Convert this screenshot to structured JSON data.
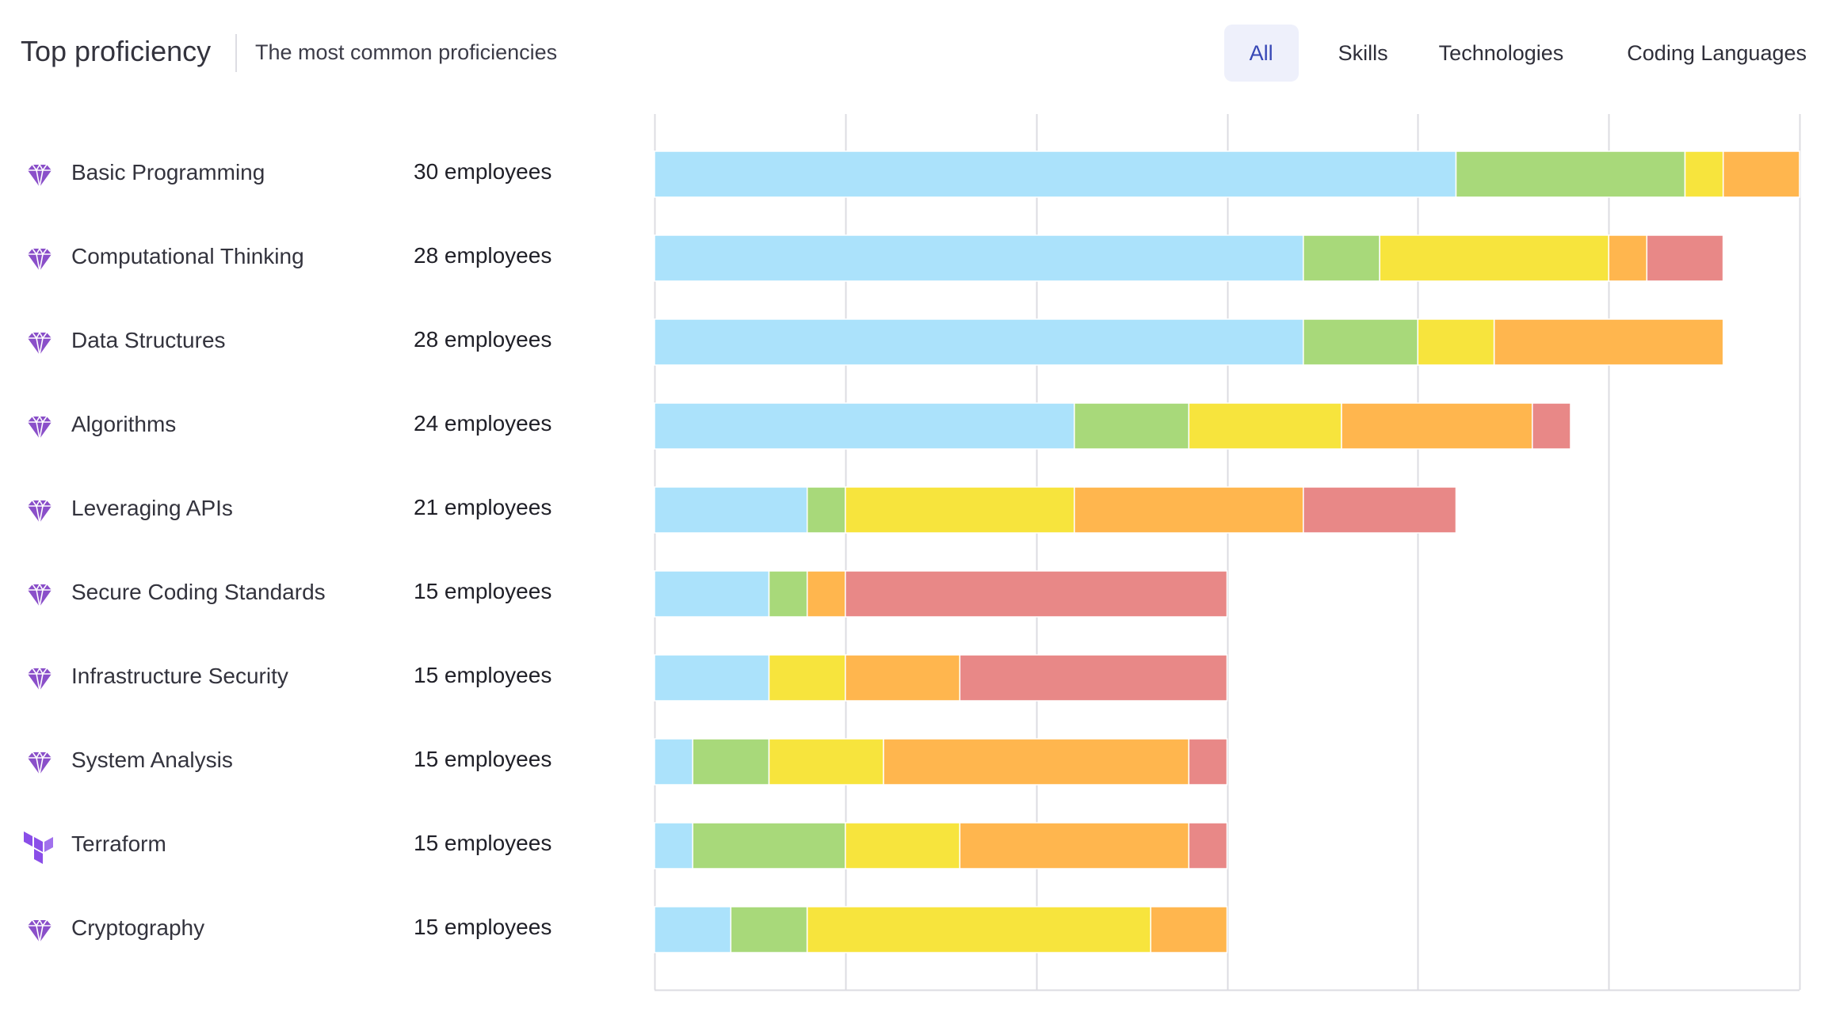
{
  "header": {
    "title": "Top proficiency",
    "subtitle": "The most common proficiencies"
  },
  "tabs": [
    {
      "label": "All",
      "active": true
    },
    {
      "label": "Skills",
      "active": false
    },
    {
      "label": "Technologies",
      "active": false
    },
    {
      "label": "Coding Languages",
      "active": false
    }
  ],
  "colors": {
    "level1": "#abe2fb",
    "level2": "#a8d97a",
    "level3": "#f7e43d",
    "level4": "#ffb64e",
    "level5": "#e88887",
    "grid": "#dcdce2",
    "skill_icon": "#8a4fc9",
    "tech_icon": "#8a4ee8"
  },
  "chart_data": {
    "type": "bar",
    "orientation": "horizontal",
    "stacked": true,
    "xlim": [
      0,
      30
    ],
    "grid": true,
    "categories": [
      "Basic Programming",
      "Computational Thinking",
      "Data Structures",
      "Algorithms",
      "Leveraging APIs",
      "Secure Coding Standards",
      "Infrastructure Security",
      "System Analysis",
      "Terraform",
      "Cryptography"
    ],
    "counts": [
      "30 employees",
      "28 employees",
      "28 employees",
      "24 employees",
      "21 employees",
      "15 employees",
      "15 employees",
      "15 employees",
      "15 employees",
      "15 employees"
    ],
    "icons": [
      "gem-icon",
      "gem-icon",
      "gem-icon",
      "gem-icon",
      "gem-icon",
      "gem-icon",
      "gem-icon",
      "gem-icon",
      "terraform-icon",
      "gem-icon"
    ],
    "series": [
      {
        "values": [
          21,
          17,
          17,
          11,
          4,
          3,
          3,
          1,
          1,
          2
        ]
      },
      {
        "values": [
          6,
          2,
          3,
          3,
          1,
          1,
          0,
          2,
          4,
          2
        ]
      },
      {
        "values": [
          1,
          6,
          2,
          4,
          6,
          0,
          2,
          3,
          3,
          9
        ]
      },
      {
        "values": [
          2,
          1,
          6,
          5,
          6,
          1,
          3,
          8,
          6,
          2
        ]
      },
      {
        "values": [
          0,
          2,
          0,
          1,
          4,
          10,
          7,
          1,
          1,
          0
        ]
      }
    ]
  }
}
